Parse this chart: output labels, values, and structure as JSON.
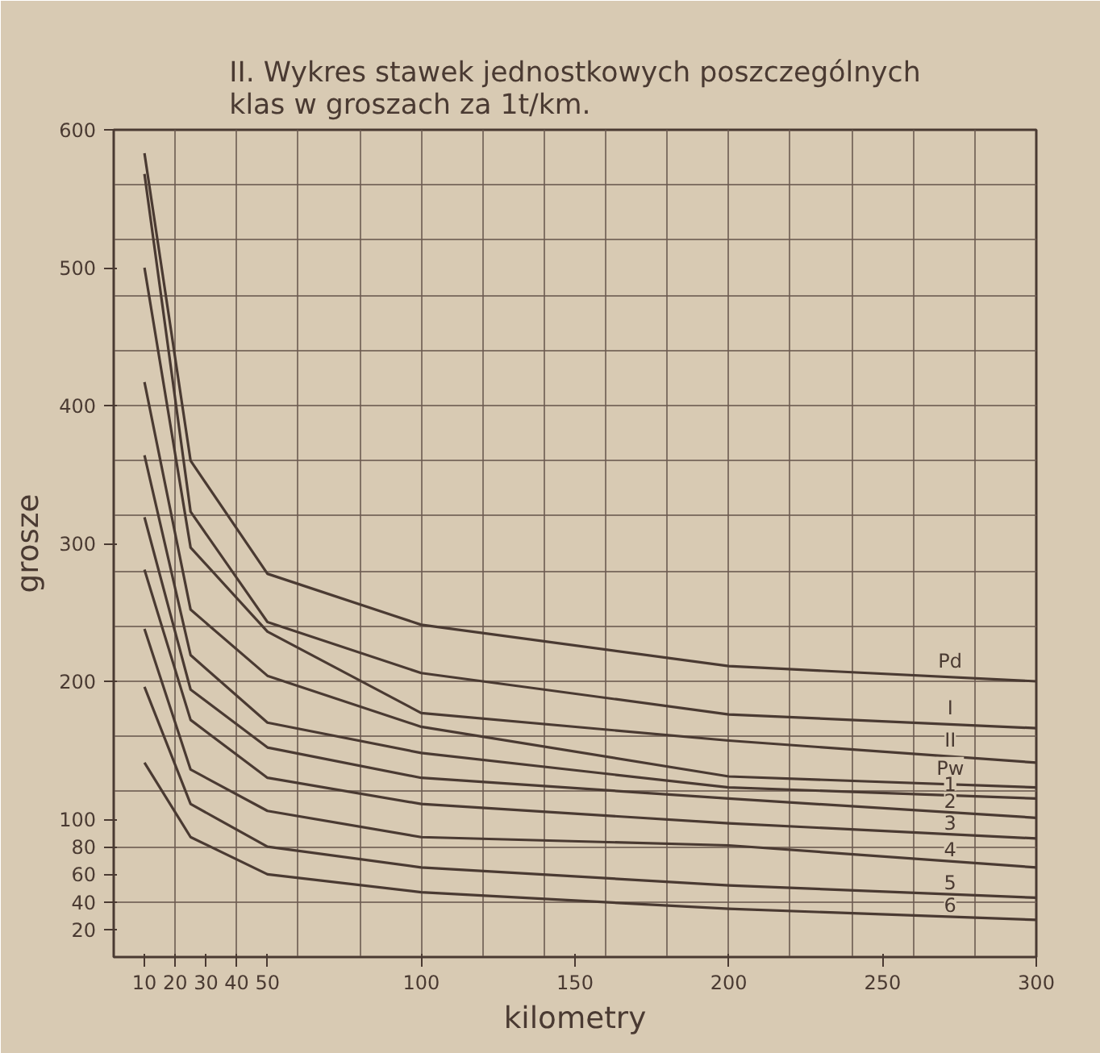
{
  "chart_data": {
    "type": "line",
    "title": "II. Wykres stawek jednostkowych poszczególnych klas w groszach za 1t/km.",
    "xlabel": "kilometry",
    "ylabel": "grosze",
    "xlim": [
      0,
      300
    ],
    "ylim": [
      0,
      600
    ],
    "xticks": [
      10,
      20,
      30,
      40,
      50,
      100,
      150,
      200,
      250,
      300
    ],
    "yticks": [
      20,
      40,
      60,
      80,
      100,
      200,
      300,
      400,
      500,
      600
    ],
    "grid": true,
    "marker": "none",
    "line_style": "solid",
    "x": [
      10,
      25,
      50,
      100,
      200,
      300
    ],
    "series": [
      {
        "name": "Pd",
        "color": "#4a3a32",
        "values": [
          583,
          360,
          278,
          241,
          211,
          200
        ]
      },
      {
        "name": "I",
        "color": "#4a3a32",
        "values": [
          568,
          323,
          243,
          206,
          176,
          166
        ]
      },
      {
        "name": "II",
        "color": "#4a3a32",
        "values": [
          500,
          297,
          236,
          177,
          157,
          141
        ]
      },
      {
        "name": "Pw",
        "color": "#4a3a32",
        "values": [
          417,
          252,
          204,
          167,
          131,
          123
        ]
      },
      {
        "name": "1",
        "color": "#4a3a32",
        "values": [
          364,
          219,
          170,
          148,
          123,
          115
        ]
      },
      {
        "name": "2",
        "color": "#4a3a32",
        "values": [
          319,
          194,
          152,
          130,
          115,
          101
        ]
      },
      {
        "name": "3",
        "color": "#4a3a32",
        "values": [
          281,
          172,
          130,
          111,
          97,
          86
        ]
      },
      {
        "name": "4",
        "color": "#4a3a32",
        "values": [
          238,
          136,
          106,
          87,
          81,
          65
        ]
      },
      {
        "name": "5",
        "color": "#4a3a32",
        "values": [
          196,
          111,
          80,
          65,
          52,
          43
        ]
      },
      {
        "name": "6",
        "color": "#4a3a32",
        "values": [
          141,
          87,
          60,
          47,
          35,
          27
        ]
      }
    ]
  }
}
